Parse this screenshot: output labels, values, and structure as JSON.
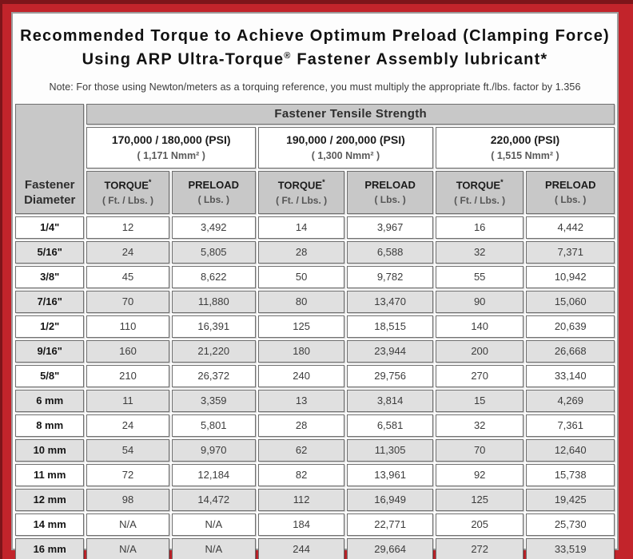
{
  "frame": {
    "outer_edge_color": "#7d151a",
    "red_color": "#c2242b",
    "header_gray": "#c8c8c8",
    "alt_row_gray": "#e0e0e0"
  },
  "title": {
    "line1": "Recommended Torque to Achieve Optimum Preload (Clamping Force)",
    "line2_brand": "Using ARP Ultra-Torque",
    "line2_reg": "®",
    "line2_rest": " Fastener Assembly lubricant*"
  },
  "note": "Note: For those using Newton/meters as a torquing reference, you must multiply the appropriate ft./lbs. factor by 1.356",
  "table": {
    "corner_header_line1": "Fastener",
    "corner_header_line2": "Diameter",
    "group_header": "Fastener Tensile Strength",
    "strength_columns": [
      {
        "psi": "170,000 / 180,000 (PSI)",
        "nmm": "( 1,171 Nmm² )"
      },
      {
        "psi": "190,000 / 200,000 (PSI)",
        "nmm": "( 1,300 Nmm² )"
      },
      {
        "psi": "220,000 (PSI)",
        "nmm": "( 1,515 Nmm² )"
      }
    ],
    "sub_headers": {
      "torque_label": "TORQUE",
      "torque_sup": "*",
      "torque_unit": "( Ft. / Lbs. )",
      "preload_label": "PRELOAD",
      "preload_unit": "( Lbs. )"
    },
    "rows": [
      {
        "diameter": "1/4\"",
        "values": [
          "12",
          "3,492",
          "14",
          "3,967",
          "16",
          "4,442"
        ]
      },
      {
        "diameter": "5/16\"",
        "values": [
          "24",
          "5,805",
          "28",
          "6,588",
          "32",
          "7,371"
        ]
      },
      {
        "diameter": "3/8\"",
        "values": [
          "45",
          "8,622",
          "50",
          "9,782",
          "55",
          "10,942"
        ]
      },
      {
        "diameter": "7/16\"",
        "values": [
          "70",
          "11,880",
          "80",
          "13,470",
          "90",
          "15,060"
        ]
      },
      {
        "diameter": "1/2\"",
        "values": [
          "110",
          "16,391",
          "125",
          "18,515",
          "140",
          "20,639"
        ]
      },
      {
        "diameter": "9/16\"",
        "values": [
          "160",
          "21,220",
          "180",
          "23,944",
          "200",
          "26,668"
        ]
      },
      {
        "diameter": "5/8\"",
        "values": [
          "210",
          "26,372",
          "240",
          "29,756",
          "270",
          "33,140"
        ]
      },
      {
        "diameter": "6 mm",
        "values": [
          "11",
          "3,359",
          "13",
          "3,814",
          "15",
          "4,269"
        ]
      },
      {
        "diameter": "8 mm",
        "values": [
          "24",
          "5,801",
          "28",
          "6,581",
          "32",
          "7,361"
        ]
      },
      {
        "diameter": "10 mm",
        "values": [
          "54",
          "9,970",
          "62",
          "11,305",
          "70",
          "12,640"
        ]
      },
      {
        "diameter": "11 mm",
        "values": [
          "72",
          "12,184",
          "82",
          "13,961",
          "92",
          "15,738"
        ]
      },
      {
        "diameter": "12 mm",
        "values": [
          "98",
          "14,472",
          "112",
          "16,949",
          "125",
          "19,425"
        ]
      },
      {
        "diameter": "14 mm",
        "values": [
          "N/A",
          "N/A",
          "184",
          "22,771",
          "205",
          "25,730"
        ]
      },
      {
        "diameter": "16 mm",
        "values": [
          "N/A",
          "N/A",
          "244",
          "29,664",
          "272",
          "33,519"
        ]
      }
    ]
  }
}
